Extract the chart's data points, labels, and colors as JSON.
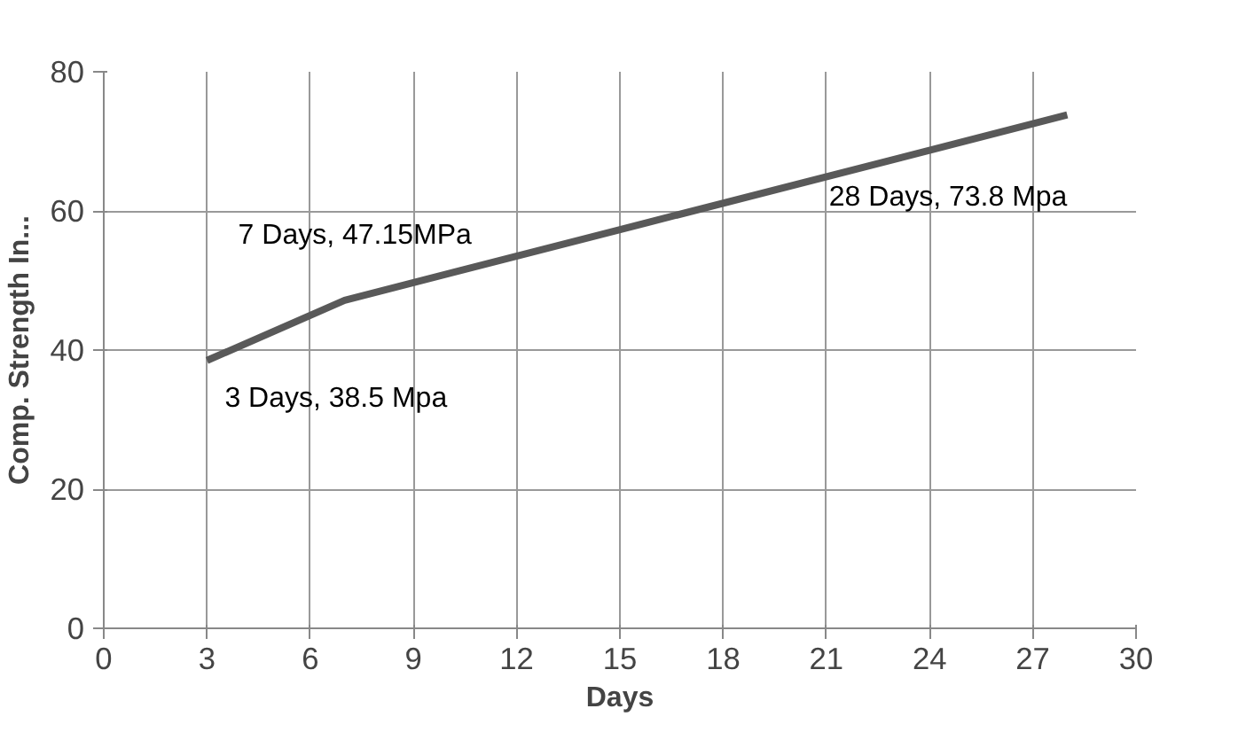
{
  "chart_data": {
    "type": "line",
    "xlabel": "Days",
    "ylabel": "Comp. Strength In...",
    "x": [
      3,
      7,
      28
    ],
    "series": [
      {
        "color": "#595959",
        "values": [
          38.5,
          47.15,
          73.8
        ],
        "value_labels": [
          "3 Days, 38.5 Mpa",
          "7 Days, 47.15MPa",
          "28 Days, 73.8 Mpa"
        ]
      }
    ],
    "xlim": [
      0,
      30
    ],
    "xticks": [
      0,
      3,
      6,
      9,
      12,
      15,
      18,
      21,
      24,
      27,
      30
    ],
    "ylim": [
      0,
      80
    ],
    "yticks": [
      0,
      20,
      40,
      60,
      80
    ],
    "grid": true,
    "marker": "none",
    "line_style": "solid"
  }
}
